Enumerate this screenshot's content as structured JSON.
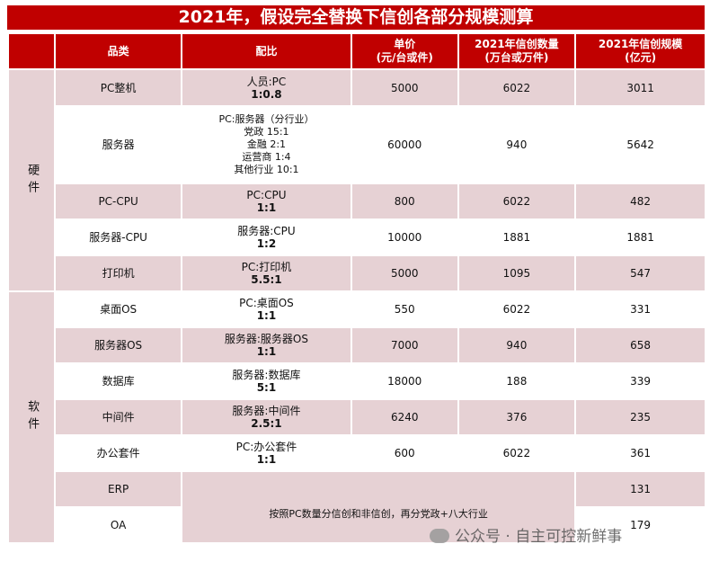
{
  "title": "2021年，假设完全替换下信创各部分规模测算",
  "headers": {
    "category": "品类",
    "ratio": "配比",
    "unit_price": "单价",
    "unit_price_unit": "(元/台或件)",
    "quantity": "2021年信创数量",
    "quantity_unit": "(万台或万件)",
    "scale": "2021年信创规模",
    "scale_unit": "(亿元)"
  },
  "groups": {
    "hardware": "硬件",
    "software": "软件"
  },
  "rows": [
    {
      "item": "PC整机",
      "ratio_label": "人员:PC",
      "ratio_value": "1:0.8",
      "price": "5000",
      "qty": "6022",
      "scale": "3011"
    },
    {
      "item": "服务器",
      "ratio_lines": [
        "PC:服务器（分行业）",
        "党政 15:1",
        "金融 2:1",
        "运营商 1:4",
        "其他行业 10:1"
      ],
      "price": "60000",
      "qty": "940",
      "scale": "5642"
    },
    {
      "item": "PC-CPU",
      "ratio_label": "PC:CPU",
      "ratio_value": "1:1",
      "price": "800",
      "qty": "6022",
      "scale": "482"
    },
    {
      "item": "服务器-CPU",
      "ratio_label": "服务器:CPU",
      "ratio_value": "1:2",
      "price": "10000",
      "qty": "1881",
      "scale": "1881"
    },
    {
      "item": "打印机",
      "ratio_label": "PC:打印机",
      "ratio_value": "5.5:1",
      "price": "5000",
      "qty": "1095",
      "scale": "547"
    },
    {
      "item": "桌面OS",
      "ratio_label": "PC:桌面OS",
      "ratio_value": "1:1",
      "price": "550",
      "qty": "6022",
      "scale": "331"
    },
    {
      "item": "服务器OS",
      "ratio_label": "服务器:服务器OS",
      "ratio_value": "1:1",
      "price": "7000",
      "qty": "940",
      "scale": "658"
    },
    {
      "item": "数据库",
      "ratio_label": "服务器:数据库",
      "ratio_value": "5:1",
      "price": "18000",
      "qty": "188",
      "scale": "339"
    },
    {
      "item": "中间件",
      "ratio_label": "服务器:中间件",
      "ratio_value": "2.5:1",
      "price": "6240",
      "qty": "376",
      "scale": "235"
    },
    {
      "item": "办公套件",
      "ratio_label": "PC:办公套件",
      "ratio_value": "1:1",
      "price": "600",
      "qty": "6022",
      "scale": "361"
    },
    {
      "item": "ERP",
      "scale": "131"
    },
    {
      "item": "OA",
      "scale": "179"
    }
  ],
  "merged_note": "按照PC数量分信创和非信创，再分党政+八大行业",
  "watermark": "公众号 · 自主可控新鲜事"
}
